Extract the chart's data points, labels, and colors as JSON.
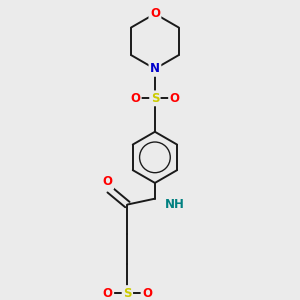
{
  "bg_color": "#ebebeb",
  "bond_color": "#1a1a1a",
  "atom_colors": {
    "O": "#ff0000",
    "N": "#0000cc",
    "S": "#cccc00",
    "NH": "#008080",
    "C": "#1a1a1a"
  },
  "figsize": [
    3.0,
    3.0
  ],
  "dpi": 100
}
